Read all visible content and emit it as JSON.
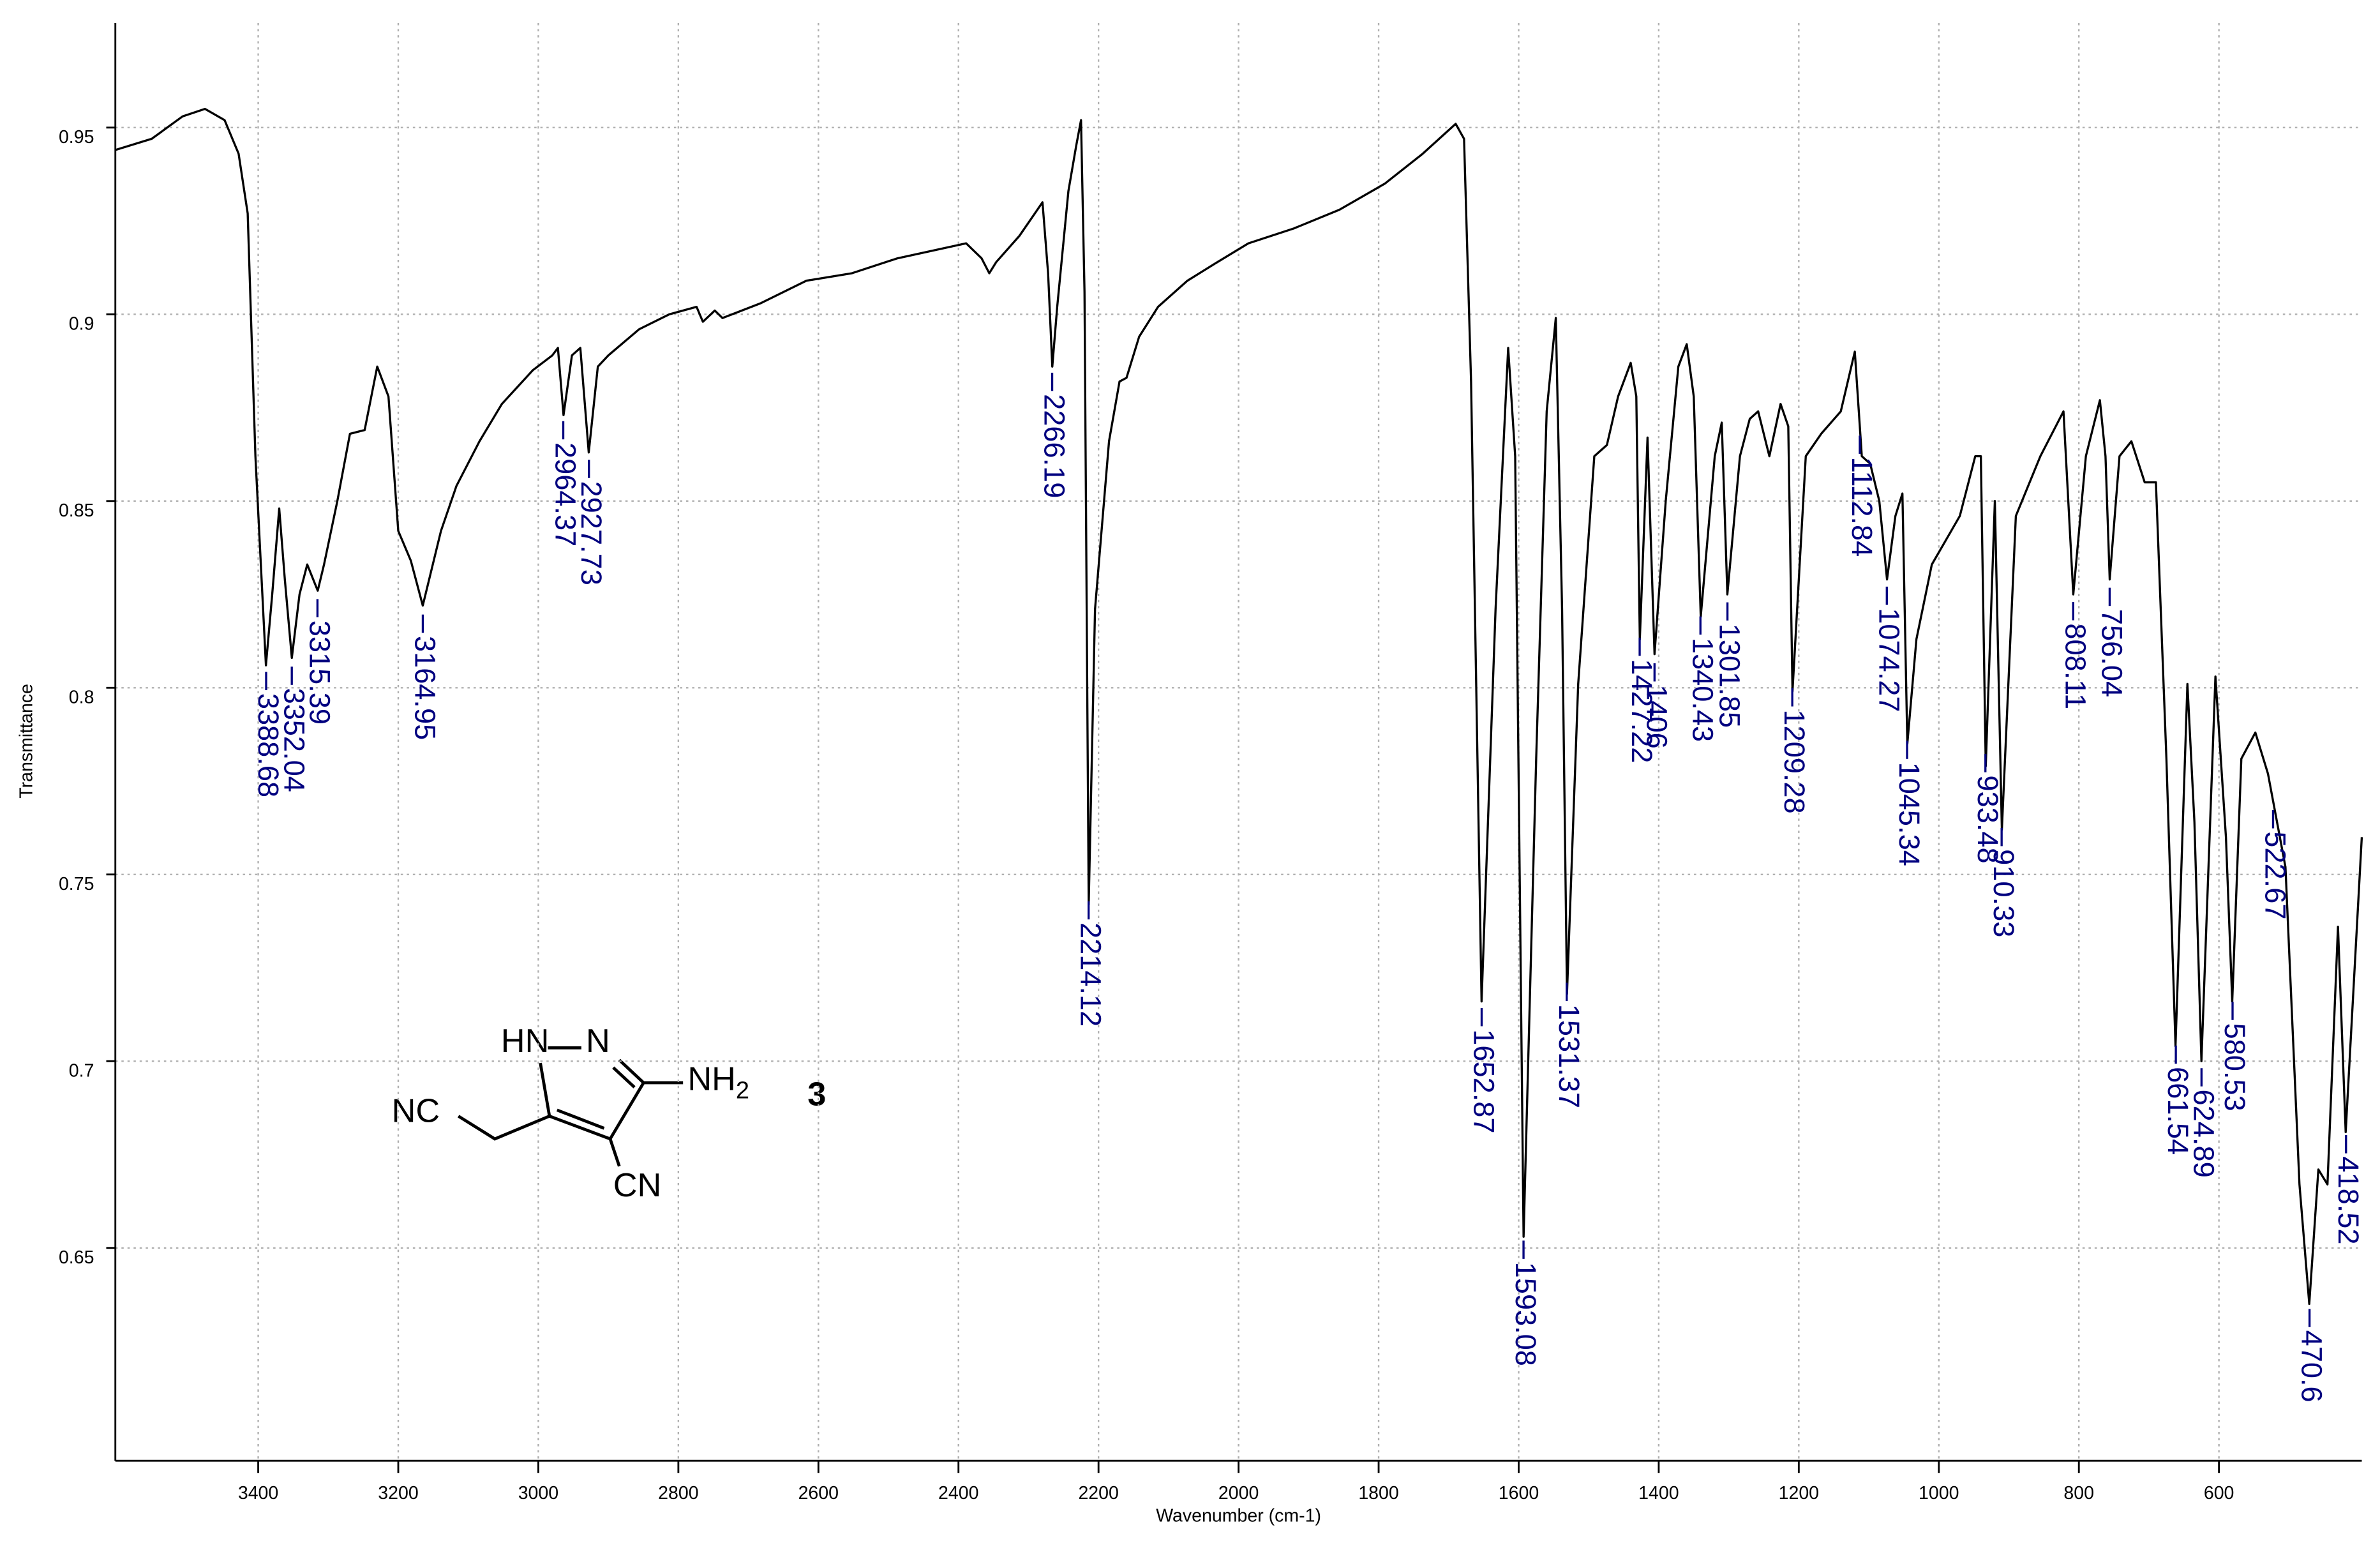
{
  "chart_data": {
    "type": "line",
    "xlabel": "Wavenumber (cm-1)",
    "ylabel": "Transmittance",
    "xlim": [
      3604,
      396
    ],
    "ylim": [
      0.593,
      0.978
    ],
    "xticks": [
      3400,
      3200,
      3000,
      2800,
      2600,
      2400,
      2200,
      2000,
      1800,
      1600,
      1400,
      1200,
      1000,
      800,
      600
    ],
    "yticks": [
      0.65,
      0.7,
      0.75,
      0.8,
      0.85,
      0.9,
      0.95
    ],
    "grid": true,
    "color": "#000000",
    "label_color": "#00007f",
    "x": [
      3604,
      3552,
      3508,
      3476,
      3448,
      3428,
      3415,
      3404,
      3389,
      3380,
      3370,
      3362,
      3352,
      3341,
      3330,
      3315,
      3306,
      3287,
      3269,
      3248,
      3230,
      3214,
      3200,
      3182,
      3165,
      3139,
      3117,
      3084,
      3052,
      3008,
      2980,
      2972,
      2964,
      2952,
      2940,
      2928,
      2915,
      2900,
      2856,
      2813,
      2774,
      2765,
      2748,
      2737,
      2682,
      2617,
      2552,
      2487,
      2389,
      2367,
      2356,
      2346,
      2313,
      2291,
      2280,
      2272,
      2266,
      2259,
      2243,
      2232,
      2225,
      2220,
      2214,
      2205,
      2185,
      2170,
      2160,
      2142,
      2115,
      2073,
      2030,
      1986,
      1921,
      1856,
      1791,
      1737,
      1690,
      1678,
      1668,
      1653,
      1633,
      1615,
      1605,
      1593,
      1575,
      1560,
      1547,
      1538,
      1531,
      1515,
      1492,
      1474,
      1458,
      1440,
      1432,
      1427,
      1416,
      1406,
      1390,
      1372,
      1360,
      1350,
      1340,
      1320,
      1310,
      1302,
      1284,
      1270,
      1258,
      1242,
      1226,
      1215,
      1209,
      1190,
      1168,
      1140,
      1120,
      1110,
      1098,
      1085,
      1074,
      1062,
      1052,
      1045,
      1032,
      1010,
      970,
      948,
      940,
      933,
      920,
      910,
      890,
      855,
      822,
      808,
      790,
      770,
      762,
      756,
      742,
      725,
      706,
      690,
      675,
      662,
      645,
      635,
      625,
      605,
      590,
      581,
      568,
      548,
      530,
      523,
      505,
      485,
      471,
      458,
      445,
      430,
      419,
      396
    ],
    "values": [
      0.944,
      0.947,
      0.953,
      0.955,
      0.952,
      0.943,
      0.927,
      0.862,
      0.806,
      0.825,
      0.848,
      0.829,
      0.808,
      0.825,
      0.833,
      0.826,
      0.833,
      0.85,
      0.868,
      0.869,
      0.886,
      0.878,
      0.842,
      0.834,
      0.822,
      0.842,
      0.854,
      0.866,
      0.876,
      0.885,
      0.889,
      0.891,
      0.873,
      0.889,
      0.891,
      0.863,
      0.886,
      0.889,
      0.896,
      0.9,
      0.902,
      0.898,
      0.901,
      0.899,
      0.903,
      0.909,
      0.911,
      0.915,
      0.919,
      0.915,
      0.911,
      0.914,
      0.921,
      0.927,
      0.93,
      0.911,
      0.886,
      0.902,
      0.933,
      0.945,
      0.952,
      0.906,
      0.742,
      0.821,
      0.866,
      0.882,
      0.883,
      0.894,
      0.902,
      0.909,
      0.914,
      0.919,
      0.923,
      0.928,
      0.935,
      0.943,
      0.951,
      0.947,
      0.882,
      0.716,
      0.821,
      0.891,
      0.862,
      0.653,
      0.781,
      0.874,
      0.899,
      0.821,
      0.718,
      0.801,
      0.862,
      0.865,
      0.878,
      0.887,
      0.878,
      0.813,
      0.867,
      0.809,
      0.85,
      0.886,
      0.892,
      0.878,
      0.819,
      0.862,
      0.871,
      0.825,
      0.862,
      0.872,
      0.874,
      0.862,
      0.876,
      0.87,
      0.799,
      0.862,
      0.868,
      0.874,
      0.89,
      0.862,
      0.86,
      0.85,
      0.829,
      0.846,
      0.852,
      0.785,
      0.813,
      0.833,
      0.846,
      0.862,
      0.862,
      0.779,
      0.85,
      0.762,
      0.846,
      0.862,
      0.874,
      0.825,
      0.862,
      0.877,
      0.862,
      0.829,
      0.862,
      0.866,
      0.855,
      0.855,
      0.781,
      0.704,
      0.801,
      0.764,
      0.7,
      0.803,
      0.76,
      0.716,
      0.781,
      0.788,
      0.777,
      0.77,
      0.752,
      0.667,
      0.635,
      0.671,
      0.667,
      0.736,
      0.681,
      0.76
    ],
    "peaks": [
      3388.68,
      3352.04,
      3315.39,
      3164.95,
      2964.37,
      2927.73,
      2266.19,
      2214.12,
      1652.87,
      1593.08,
      1531.37,
      1427.22,
      1406,
      1340.43,
      1301.85,
      1209.28,
      1112.84,
      1074.27,
      1045.34,
      933.48,
      910.33,
      808.11,
      756.04,
      661.54,
      624.89,
      580.53,
      522.67,
      470.6,
      418.52
    ],
    "structure": {
      "hn": "HN",
      "n": "N",
      "nh": "NH",
      "sub": "2",
      "nc": "NC",
      "cn": "CN",
      "number": "3"
    }
  }
}
